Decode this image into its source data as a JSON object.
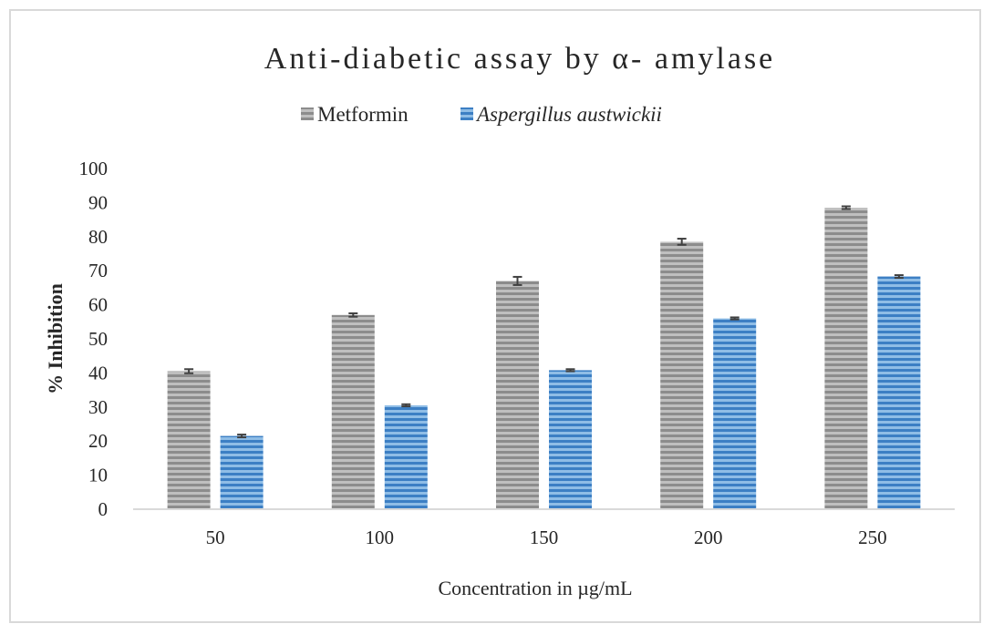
{
  "chart_data": {
    "type": "bar",
    "title": "Anti-diabetic assay by α- amylase",
    "xlabel": "Concentration in µg/mL",
    "ylabel": "% Inhibition",
    "categories": [
      "50",
      "100",
      "150",
      "200",
      "250"
    ],
    "ylim": [
      0,
      100
    ],
    "yticks": [
      "0",
      "10",
      "20",
      "30",
      "40",
      "50",
      "60",
      "70",
      "80",
      "90",
      "100"
    ],
    "grid": false,
    "legend_position": "top",
    "series": [
      {
        "name": "Metformin",
        "color": "#a6a6a6",
        "values": [
          40.5,
          57,
          67,
          78.5,
          88.5
        ],
        "errors": [
          0.6,
          0.5,
          1.2,
          0.9,
          0.4
        ]
      },
      {
        "name": "Aspergillus austwickii",
        "color": "#5b9bd5",
        "values": [
          21.5,
          30.5,
          40.8,
          56,
          68.3
        ],
        "errors": [
          0.4,
          0.3,
          0.3,
          0.3,
          0.4
        ]
      }
    ]
  }
}
